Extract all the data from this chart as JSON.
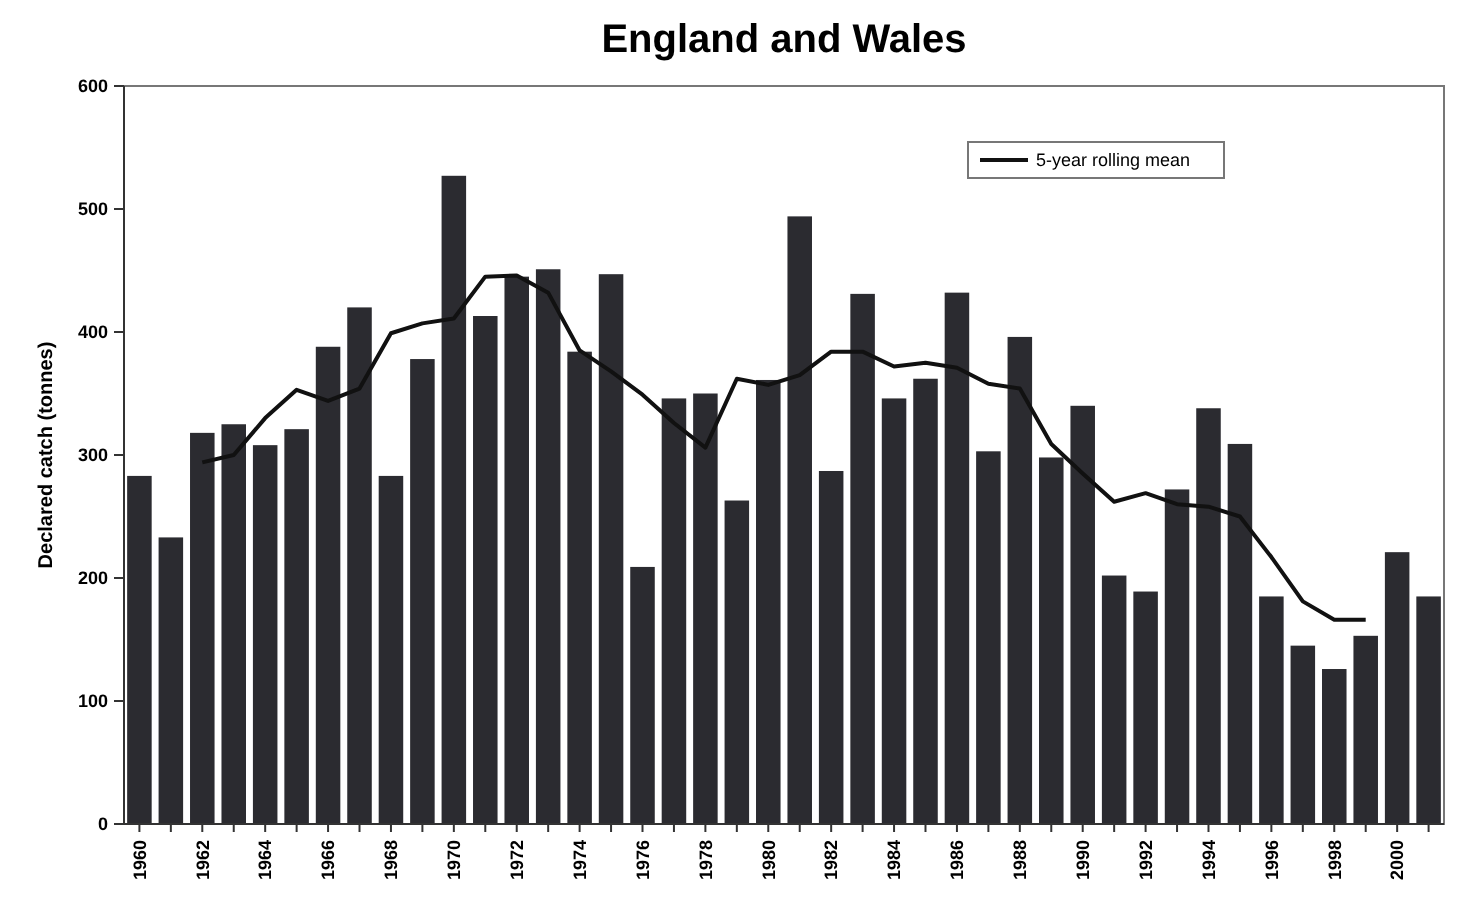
{
  "chart_data": {
    "type": "bar",
    "title": "England and Wales",
    "ylabel": "Declared catch (tonnes)",
    "categories": [
      "1960",
      null,
      "1962",
      null,
      "1964",
      null,
      "1966",
      null,
      "1968",
      null,
      "1970",
      null,
      "1972",
      null,
      "1974",
      null,
      "1976",
      null,
      "1978",
      null,
      "1980",
      null,
      "1982",
      null,
      "1984",
      null,
      "1986",
      null,
      "1988",
      null,
      "1990",
      null,
      "1992",
      null,
      "1994",
      null,
      "1996",
      null,
      "1998",
      null,
      "2000",
      null
    ],
    "series": [
      {
        "color": "#2b2b30",
        "values": [
          283,
          233,
          318,
          325,
          308,
          321,
          388,
          420,
          283,
          378,
          527,
          413,
          445,
          451,
          384,
          447,
          209,
          346,
          350,
          263,
          361,
          494,
          287,
          431,
          346,
          362,
          432,
          303,
          396,
          298,
          340,
          202,
          189,
          272,
          338,
          309,
          185,
          145,
          126,
          153,
          221,
          185
        ]
      },
      {
        "type": "line",
        "name": "5-year rolling mean",
        "color": "#111111",
        "values": [
          null,
          null,
          294,
          300,
          330,
          353,
          344,
          354,
          399,
          407,
          411,
          445,
          446,
          432,
          385,
          368,
          349,
          326,
          306,
          362,
          357,
          365,
          384,
          384,
          372,
          375,
          371,
          358,
          354,
          309,
          285,
          262,
          269,
          260,
          258,
          250,
          217,
          181,
          166,
          166,
          null,
          null
        ]
      }
    ],
    "ylim": [
      0,
      600
    ],
    "yticks": [
      0,
      100,
      200,
      300,
      400,
      500,
      600
    ],
    "grid": false,
    "legend": "top right",
    "marker": "none",
    "line_style": "solid"
  }
}
